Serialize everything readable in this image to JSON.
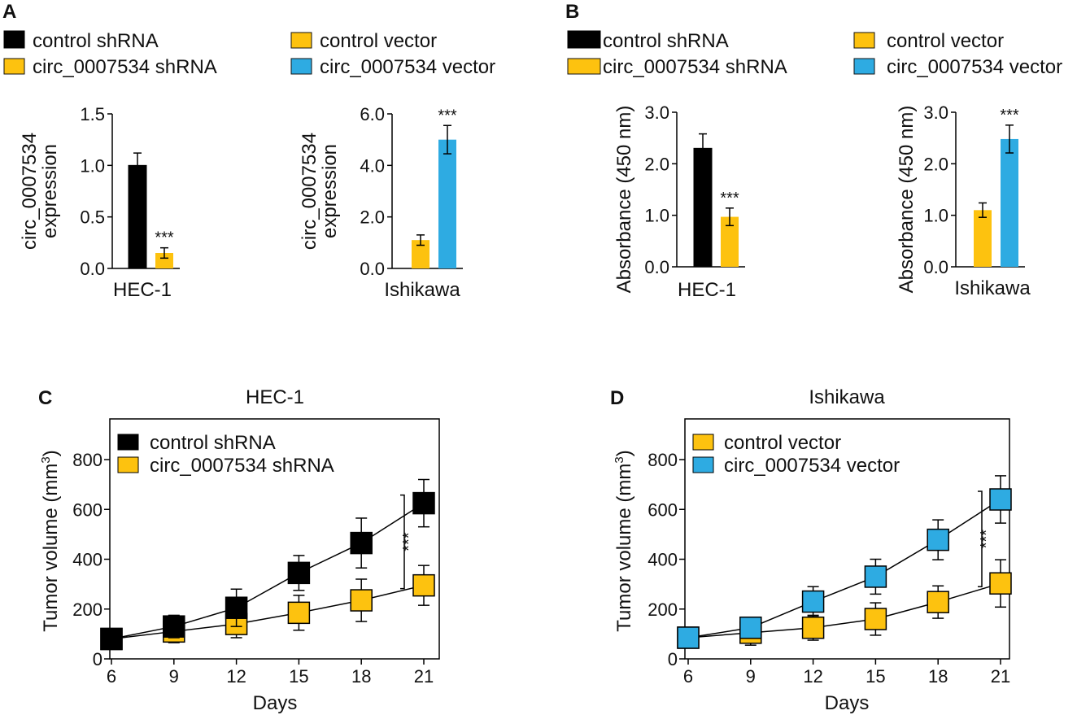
{
  "colors": {
    "black": "#000000",
    "yellow": "#FDC20F",
    "blue": "#2EABE2"
  },
  "panels": {
    "A": {
      "letter": "A"
    },
    "B": {
      "letter": "B"
    },
    "C": {
      "letter": "C"
    },
    "D": {
      "letter": "D"
    }
  },
  "legend_ab": {
    "control_shrna": "control shRNA",
    "circ_shrna": "circ_0007534 shRNA",
    "control_vector": "control vector",
    "circ_vector": "circ_0007534 vector"
  },
  "chart_data": [
    {
      "id": "A-left",
      "type": "bar",
      "group_label": "HEC-1",
      "ylabel_lines": [
        "circ_0007534",
        "expression"
      ],
      "ylim": [
        0,
        1.5
      ],
      "yticks": [
        "0.0",
        "0.5",
        "1.0",
        "1.5"
      ],
      "ytick_values": [
        0,
        0.5,
        1.0,
        1.5
      ],
      "bars": [
        {
          "series": "control shRNA",
          "color": "black",
          "value": 1.0,
          "error": 0.12,
          "sig": ""
        },
        {
          "series": "circ_0007534 shRNA",
          "color": "yellow",
          "value": 0.15,
          "error": 0.05,
          "sig": "***"
        }
      ]
    },
    {
      "id": "A-right",
      "type": "bar",
      "group_label": "Ishikawa",
      "ylabel_lines": [
        "circ_0007534",
        "expression"
      ],
      "ylim": [
        0,
        6.0
      ],
      "yticks": [
        "0.0",
        "2.0",
        "4.0",
        "6.0"
      ],
      "ytick_values": [
        0,
        2,
        4,
        6
      ],
      "bars": [
        {
          "series": "control vector",
          "color": "yellow",
          "value": 1.1,
          "error": 0.2,
          "sig": ""
        },
        {
          "series": "circ_0007534 vector",
          "color": "blue",
          "value": 5.0,
          "error": 0.55,
          "sig": "***"
        }
      ]
    },
    {
      "id": "B-left",
      "type": "bar",
      "group_label": "HEC-1",
      "ylabel_lines": [
        "Absorbance (450 nm)"
      ],
      "ylim": [
        0,
        3.0
      ],
      "yticks": [
        "0.0",
        "1.0",
        "2.0",
        "3.0"
      ],
      "ytick_values": [
        0,
        1,
        2,
        3
      ],
      "bars": [
        {
          "series": "control shRNA",
          "color": "black",
          "value": 2.3,
          "error": 0.28,
          "sig": ""
        },
        {
          "series": "circ_0007534 shRNA",
          "color": "yellow",
          "value": 0.97,
          "error": 0.17,
          "sig": "***"
        }
      ]
    },
    {
      "id": "B-right",
      "type": "bar",
      "group_label": "Ishikawa",
      "ylabel_lines": [
        "Absorbance (450 nm)"
      ],
      "ylim": [
        0,
        3.0
      ],
      "yticks": [
        "0.0",
        "1.0",
        "2.0",
        "3.0"
      ],
      "ytick_values": [
        0,
        1,
        2,
        3
      ],
      "bars": [
        {
          "series": "control vector",
          "color": "yellow",
          "value": 1.1,
          "error": 0.14,
          "sig": ""
        },
        {
          "series": "circ_0007534 vector",
          "color": "blue",
          "value": 2.48,
          "error": 0.27,
          "sig": "***"
        }
      ]
    },
    {
      "id": "C",
      "type": "line",
      "title": "HEC-1",
      "xlabel": "Days",
      "ylabel": "Tumor volume (mm",
      "ylabel_sup": "3",
      "ylabel_close": ")",
      "x": [
        6,
        9,
        12,
        15,
        18,
        21
      ],
      "xticks": [
        "6",
        "9",
        "12",
        "15",
        "18",
        "21"
      ],
      "ylim": [
        0,
        900
      ],
      "yticks": [
        "0",
        "200",
        "400",
        "600",
        "800"
      ],
      "ytick_values": [
        0,
        200,
        400,
        600,
        800
      ],
      "significance": "***",
      "series": [
        {
          "name": "circ_0007534 shRNA",
          "color": "yellow",
          "values": [
            80,
            110,
            140,
            185,
            235,
            295
          ],
          "errors": [
            25,
            45,
            55,
            70,
            85,
            80
          ]
        },
        {
          "name": "control shRNA",
          "color": "black",
          "values": [
            80,
            130,
            205,
            345,
            465,
            625
          ],
          "errors": [
            25,
            45,
            75,
            70,
            100,
            95
          ]
        }
      ],
      "legend_order": [
        "control shRNA",
        "circ_0007534 shRNA"
      ]
    },
    {
      "id": "D",
      "type": "line",
      "title": "Ishikawa",
      "xlabel": "Days",
      "ylabel": "Tumor volume (mm",
      "ylabel_sup": "3",
      "ylabel_close": ")",
      "x": [
        6,
        9,
        12,
        15,
        18,
        21
      ],
      "xticks": [
        "6",
        "9",
        "12",
        "15",
        "18",
        "21"
      ],
      "ylim": [
        0,
        900
      ],
      "yticks": [
        "0",
        "200",
        "400",
        "600",
        "800"
      ],
      "ytick_values": [
        0,
        200,
        400,
        600,
        800
      ],
      "significance": "***",
      "series": [
        {
          "name": "control vector",
          "color": "yellow",
          "values": [
            85,
            105,
            125,
            160,
            228,
            303
          ],
          "errors": [
            25,
            50,
            50,
            65,
            65,
            95
          ]
        },
        {
          "name": "circ_0007534 vector",
          "color": "blue",
          "values": [
            85,
            125,
            230,
            330,
            478,
            640
          ],
          "errors": [
            25,
            40,
            60,
            70,
            80,
            95
          ]
        }
      ],
      "legend_order": [
        "control vector",
        "circ_0007534 vector"
      ]
    }
  ]
}
